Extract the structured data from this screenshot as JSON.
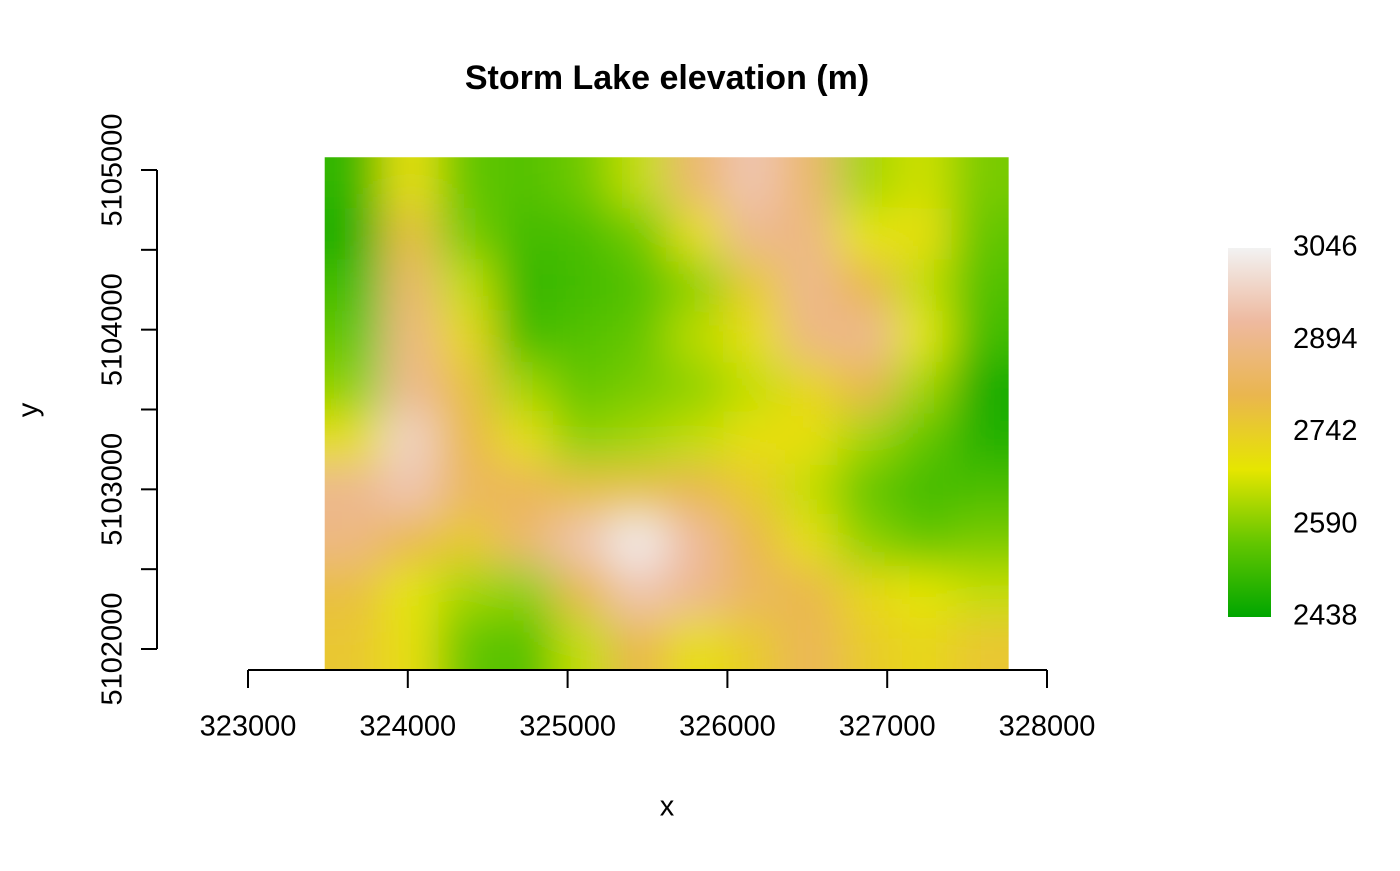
{
  "chart_data": {
    "type": "raster",
    "title": "Storm Lake elevation (m)",
    "x_label": "x",
    "y_label": "y",
    "xlim": [
      323000,
      328000
    ],
    "xticks": [
      323000,
      324000,
      325000,
      326000,
      327000,
      328000
    ],
    "ylim": [
      5102000,
      5105000
    ],
    "yticks": [
      5102000,
      5103000,
      5104000,
      5105000
    ],
    "extent_x": [
      323480,
      327760
    ],
    "extent_y": [
      5101875,
      5105080
    ],
    "zlim": [
      2438,
      3046
    ],
    "zticks": [
      2438,
      2590,
      2742,
      2894,
      3046
    ],
    "colorscale": [
      "#00A600",
      "#63C600",
      "#E6E600",
      "#EAB64E",
      "#EEB99F",
      "#F2F2F2"
    ],
    "z": [
      [
        2500,
        2700,
        2560,
        2540,
        2570,
        2650,
        2850,
        2950,
        2850,
        2620,
        2660,
        2580
      ],
      [
        2470,
        2780,
        2580,
        2520,
        2530,
        2570,
        2700,
        2900,
        2880,
        2680,
        2700,
        2560
      ],
      [
        2520,
        2850,
        2650,
        2500,
        2520,
        2540,
        2600,
        2750,
        2900,
        2800,
        2650,
        2540
      ],
      [
        2560,
        2880,
        2720,
        2520,
        2540,
        2560,
        2640,
        2700,
        2880,
        2900,
        2680,
        2520
      ],
      [
        2600,
        2900,
        2780,
        2620,
        2560,
        2580,
        2600,
        2650,
        2720,
        2800,
        2620,
        2460
      ],
      [
        2700,
        2980,
        2800,
        2700,
        2600,
        2620,
        2650,
        2700,
        2700,
        2620,
        2560,
        2480
      ],
      [
        2900,
        2950,
        2830,
        2820,
        2780,
        2780,
        2800,
        2750,
        2650,
        2560,
        2520,
        2530
      ],
      [
        2880,
        2800,
        2750,
        2850,
        2950,
        3040,
        2920,
        2800,
        2700,
        2600,
        2560,
        2580
      ],
      [
        2780,
        2680,
        2620,
        2600,
        2800,
        2950,
        2900,
        2830,
        2800,
        2720,
        2680,
        2650
      ],
      [
        2760,
        2700,
        2560,
        2540,
        2650,
        2800,
        2700,
        2750,
        2820,
        2750,
        2720,
        2760
      ]
    ]
  }
}
